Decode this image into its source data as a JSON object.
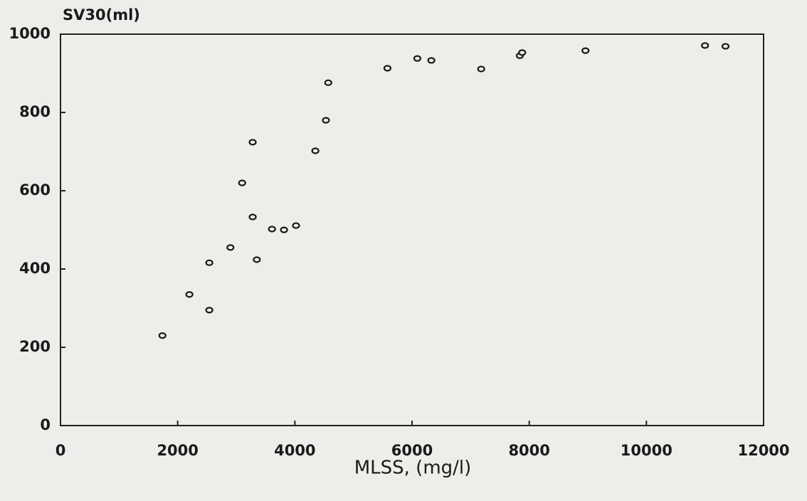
{
  "chart_data": {
    "type": "scatter",
    "y_label": "SV30(ml)",
    "x_label": "MLSS, (mg/l)",
    "color": "#1a1a1a",
    "x": [
      1740,
      2200,
      2540,
      2540,
      2900,
      3100,
      3280,
      3280,
      3350,
      3610,
      3815,
      4020,
      4350,
      4530,
      4570,
      5580,
      6090,
      6330,
      7180,
      7840,
      7880,
      8960,
      11000,
      11350
    ],
    "values": [
      230,
      335,
      295,
      416,
      455,
      620,
      533,
      724,
      424,
      502,
      500,
      511,
      702,
      780,
      876,
      913,
      938,
      933,
      911,
      945,
      953,
      958,
      971,
      969
    ],
    "xlim": [
      0,
      12000
    ],
    "xticks": [
      0,
      2000,
      4000,
      6000,
      8000,
      10000,
      12000
    ],
    "ylim": [
      0,
      1000
    ],
    "yticks": [
      0,
      200,
      400,
      600,
      800,
      1000
    ]
  }
}
